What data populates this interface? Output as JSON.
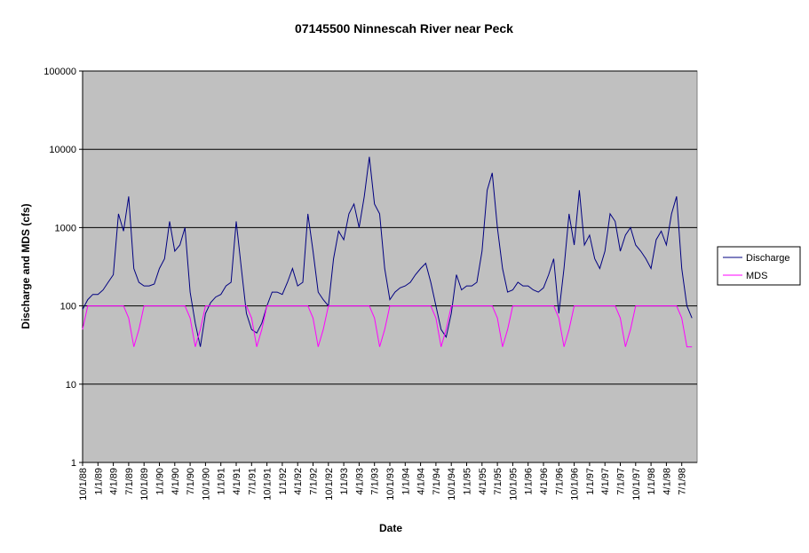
{
  "chart_data": {
    "type": "line",
    "title": "07145500 Ninnescah River near Peck",
    "x_label": "Date",
    "y_label": "Discharge and MDS (cfs)",
    "log_scale": true,
    "grid": true,
    "legend": "right",
    "background": "#c0c0c0",
    "ylim": [
      1,
      100000
    ],
    "yticks": [
      1,
      10,
      100,
      1000,
      10000,
      100000
    ],
    "categories": [
      "10/1/88",
      null,
      null,
      "1/1/89",
      null,
      null,
      "4/1/89",
      null,
      null,
      "7/1/89",
      null,
      null,
      "10/1/89",
      null,
      null,
      "1/1/90",
      null,
      null,
      "4/1/90",
      null,
      null,
      "7/1/90",
      null,
      null,
      "10/1/90",
      null,
      null,
      "1/1/91",
      null,
      null,
      "4/1/91",
      null,
      null,
      "7/1/91",
      null,
      null,
      "10/1/91",
      null,
      null,
      "1/1/92",
      null,
      null,
      "4/1/92",
      null,
      null,
      "7/1/92",
      null,
      null,
      "10/1/92",
      null,
      null,
      "1/1/93",
      null,
      null,
      "4/1/93",
      null,
      null,
      "7/1/93",
      null,
      null,
      "10/1/93",
      null,
      null,
      "1/1/94",
      null,
      null,
      "4/1/94",
      null,
      null,
      "7/1/94",
      null,
      null,
      "10/1/94",
      null,
      null,
      "1/1/95",
      null,
      null,
      "4/1/95",
      null,
      null,
      "7/1/95",
      null,
      null,
      "10/1/95",
      null,
      null,
      "1/1/96",
      null,
      null,
      "4/1/96",
      null,
      null,
      "7/1/96",
      null,
      null,
      "10/1/96",
      null,
      null,
      "1/1/97",
      null,
      null,
      "4/1/97",
      null,
      null,
      "7/1/97",
      null,
      null,
      "10/1/97",
      null,
      null,
      "1/1/98",
      null,
      null,
      "4/1/98",
      null,
      null,
      "7/1/98",
      null,
      null
    ],
    "series": [
      {
        "name": "Discharge",
        "color": "#000080",
        "values": [
          90,
          120,
          140,
          140,
          160,
          200,
          250,
          1500,
          900,
          2500,
          300,
          200,
          180,
          180,
          190,
          300,
          400,
          1200,
          500,
          600,
          1000,
          150,
          60,
          30,
          80,
          110,
          130,
          140,
          180,
          200,
          1200,
          300,
          80,
          50,
          45,
          60,
          100,
          150,
          150,
          140,
          200,
          300,
          180,
          200,
          1500,
          500,
          150,
          120,
          100,
          400,
          900,
          700,
          1500,
          2000,
          1000,
          2500,
          8000,
          2000,
          1500,
          300,
          120,
          150,
          170,
          180,
          200,
          250,
          300,
          350,
          200,
          100,
          50,
          40,
          80,
          250,
          160,
          180,
          180,
          200,
          500,
          3000,
          5000,
          1000,
          300,
          150,
          160,
          200,
          180,
          180,
          160,
          150,
          170,
          250,
          400,
          80,
          300,
          1500,
          600,
          3000,
          600,
          800,
          400,
          300,
          500,
          1500,
          1200,
          500,
          800,
          1000,
          600,
          500,
          400,
          300,
          700,
          900,
          600,
          1500,
          2500,
          300,
          100,
          70
        ]
      },
      {
        "name": "MDS",
        "color": "#ff00ff",
        "values": [
          50,
          100,
          100,
          100,
          100,
          100,
          100,
          100,
          100,
          70,
          30,
          50,
          100,
          100,
          100,
          100,
          100,
          100,
          100,
          100,
          100,
          70,
          30,
          50,
          100,
          100,
          100,
          100,
          100,
          100,
          100,
          100,
          100,
          70,
          30,
          50,
          100,
          100,
          100,
          100,
          100,
          100,
          100,
          100,
          100,
          70,
          30,
          50,
          100,
          100,
          100,
          100,
          100,
          100,
          100,
          100,
          100,
          70,
          30,
          50,
          100,
          100,
          100,
          100,
          100,
          100,
          100,
          100,
          100,
          70,
          30,
          50,
          100,
          100,
          100,
          100,
          100,
          100,
          100,
          100,
          100,
          70,
          30,
          50,
          100,
          100,
          100,
          100,
          100,
          100,
          100,
          100,
          100,
          70,
          30,
          50,
          100,
          100,
          100,
          100,
          100,
          100,
          100,
          100,
          100,
          70,
          30,
          50,
          100,
          100,
          100,
          100,
          100,
          100,
          100,
          100,
          100,
          70,
          30,
          30
        ]
      }
    ]
  }
}
